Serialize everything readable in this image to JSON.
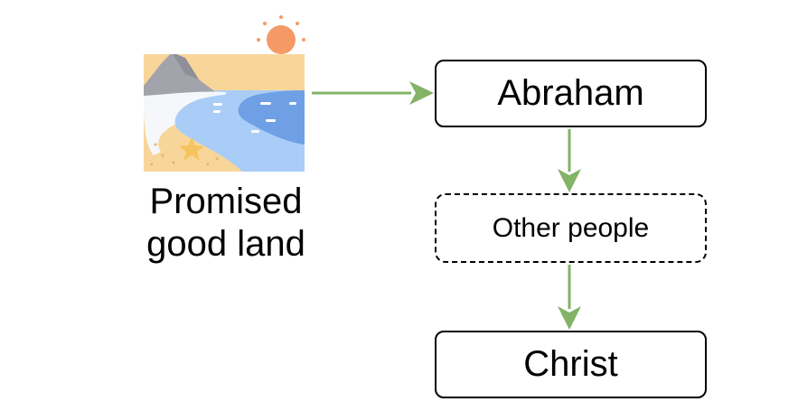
{
  "diagram": {
    "land": {
      "label": "Promised\ngood land",
      "icon": "beach-landscape-icon",
      "sun_icon": "sun-icon"
    },
    "nodes": {
      "abraham": "Abraham",
      "other_people": "Other people",
      "christ": "Christ"
    },
    "colors": {
      "arrow": "#82b366",
      "sun": "#f59a67",
      "mountain": "#a3a3ab",
      "water_light": "#a9cdf7",
      "water_dark": "#6fa0e6",
      "sand": "#f8d69a",
      "starfish": "#f5c45e"
    }
  }
}
